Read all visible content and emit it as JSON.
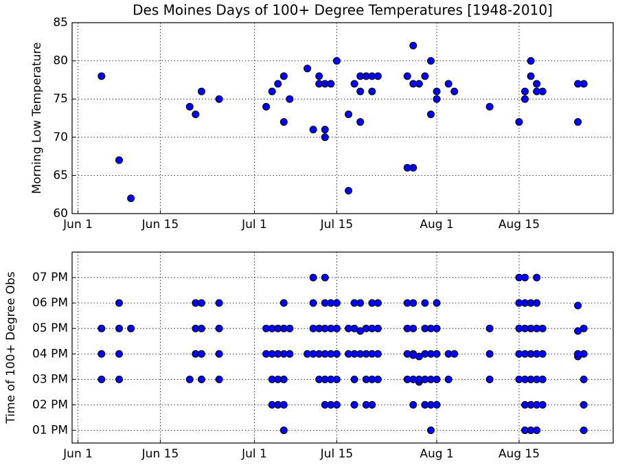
{
  "chart_data": [
    {
      "type": "scatter",
      "title": "Des Moines Days of 100+ Degree Temperatures [1948-2010]",
      "ylabel": "Morning Low Temperature",
      "color": "#0000ff",
      "grid": true,
      "x": [
        4,
        7,
        9,
        19,
        20,
        21,
        24,
        32,
        33,
        34,
        35,
        35,
        36,
        39,
        40,
        41,
        41,
        42,
        42,
        42,
        43,
        44,
        46,
        46,
        47,
        48,
        48,
        48,
        49,
        50,
        50,
        51,
        56,
        56,
        57,
        57,
        57,
        58,
        59,
        60,
        60,
        61,
        61,
        63,
        64,
        70,
        75,
        76,
        76,
        77,
        77,
        78,
        78,
        79,
        85,
        85,
        86
      ],
      "values": [
        78,
        67,
        62,
        74,
        73,
        76,
        75,
        74,
        76,
        77,
        72,
        78,
        75,
        79,
        71,
        78,
        77,
        71,
        70,
        77,
        77,
        80,
        73,
        63,
        77,
        72,
        76,
        78,
        78,
        76,
        78,
        78,
        78,
        66,
        66,
        82,
        77,
        77,
        78,
        80,
        73,
        75,
        76,
        77,
        76,
        74,
        72,
        75,
        76,
        80,
        78,
        77,
        76,
        76,
        72,
        77,
        77
      ],
      "xlim": [
        -1,
        91
      ],
      "xticks": [
        {
          "value": 0,
          "label": "Jun 1"
        },
        {
          "value": 14,
          "label": "Jun 15"
        },
        {
          "value": 30,
          "label": "Jul 1"
        },
        {
          "value": 44,
          "label": "Jul 15"
        },
        {
          "value": 61,
          "label": "Aug 1"
        },
        {
          "value": 75,
          "label": "Aug 15"
        }
      ],
      "ylim": [
        60,
        85
      ],
      "yticks": [
        60,
        65,
        70,
        75,
        80,
        85
      ]
    },
    {
      "type": "scatter",
      "ylabel": "Time of 100+ Degree Obs",
      "color": "#0000ff",
      "grid": true,
      "x": [
        4,
        4,
        4,
        7,
        7,
        7,
        7,
        9,
        19,
        20,
        20,
        20,
        21,
        21,
        21,
        21,
        24,
        24,
        24,
        24,
        32,
        32,
        33,
        33,
        33,
        33,
        34,
        34,
        34,
        34,
        35,
        35,
        35,
        35,
        35,
        35,
        36,
        36,
        39,
        40,
        40,
        40,
        40,
        41,
        41,
        41,
        42,
        42,
        42,
        42,
        42,
        42,
        43,
        43,
        43,
        43,
        43,
        44,
        44,
        44,
        44,
        44,
        46,
        46,
        47,
        47,
        47,
        47,
        47,
        48,
        48,
        48,
        49,
        49,
        49,
        49,
        50,
        50,
        50,
        50,
        50,
        51,
        51,
        51,
        51,
        56,
        56,
        56,
        56,
        57,
        57,
        57,
        57,
        57,
        57,
        58,
        58,
        58,
        59,
        59,
        59,
        59,
        59,
        60,
        60,
        60,
        60,
        60,
        61,
        61,
        61,
        61,
        61,
        63,
        63,
        64,
        70,
        70,
        70,
        75,
        75,
        75,
        75,
        75,
        76,
        76,
        76,
        76,
        76,
        76,
        76,
        77,
        77,
        77,
        77,
        77,
        77,
        78,
        78,
        78,
        78,
        78,
        78,
        78,
        79,
        79,
        79,
        79,
        85,
        85,
        85,
        85,
        86,
        86,
        86,
        86,
        86
      ],
      "values": [
        17,
        16,
        15,
        18,
        17,
        16,
        15,
        17,
        15,
        18,
        17,
        16,
        18,
        17,
        16,
        15,
        18,
        17,
        16,
        15,
        17,
        16,
        17,
        16,
        15,
        14,
        17,
        16,
        15,
        14,
        18,
        17,
        16,
        15,
        14,
        13,
        17,
        16,
        16,
        19,
        18,
        17,
        16,
        17,
        16,
        15,
        19,
        18,
        17,
        16,
        15,
        14,
        18,
        17,
        16,
        15,
        14,
        18,
        17,
        16,
        15,
        14,
        17,
        16,
        18,
        17,
        16,
        15,
        14,
        18,
        16.9,
        16,
        17,
        16,
        15,
        14,
        18,
        17,
        16,
        15,
        14,
        18,
        17,
        16,
        15,
        18,
        17,
        16,
        15,
        18,
        17,
        16,
        15.95,
        15,
        14,
        15.9,
        14.9,
        15,
        18,
        17,
        16,
        15,
        14,
        17,
        16,
        15,
        14,
        13,
        18,
        17,
        16,
        15,
        14,
        16,
        15,
        16,
        17,
        16,
        15,
        19,
        18,
        17,
        16,
        15,
        19,
        18,
        17,
        16,
        15,
        14,
        13,
        18,
        17,
        16,
        15,
        14,
        13,
        19,
        18,
        17,
        16,
        15,
        14,
        13,
        17,
        16,
        15,
        14,
        17.9,
        16.9,
        15.9,
        16,
        17,
        16,
        15,
        14,
        13
      ],
      "xlim": [
        -1,
        91
      ],
      "xticks": [
        {
          "value": 0,
          "label": "Jun 1"
        },
        {
          "value": 14,
          "label": "Jun 15"
        },
        {
          "value": 30,
          "label": "Jul 1"
        },
        {
          "value": 44,
          "label": "Jul 15"
        },
        {
          "value": 61,
          "label": "Aug 1"
        },
        {
          "value": 75,
          "label": "Aug 15"
        }
      ],
      "ylim": [
        12.5,
        20
      ],
      "yticks": [
        {
          "value": 13,
          "label": "01 PM"
        },
        {
          "value": 14,
          "label": "02 PM"
        },
        {
          "value": 15,
          "label": "03 PM"
        },
        {
          "value": 16,
          "label": "04 PM"
        },
        {
          "value": 17,
          "label": "05 PM"
        },
        {
          "value": 18,
          "label": "06 PM"
        },
        {
          "value": 19,
          "label": "07 PM"
        }
      ]
    }
  ]
}
